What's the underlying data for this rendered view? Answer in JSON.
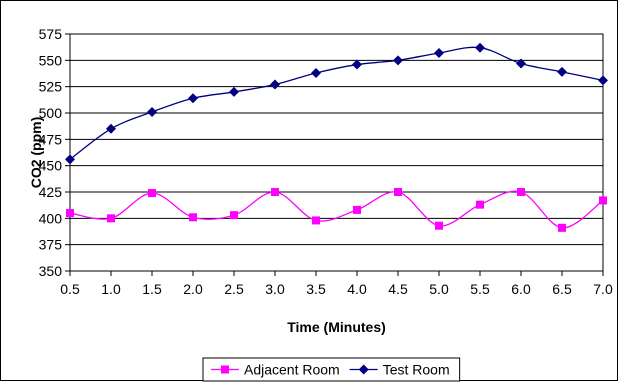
{
  "chart_data": {
    "type": "line",
    "title": "",
    "xlabel": "Time (Minutes)",
    "ylabel": "CO2 (ppm)",
    "x": [
      0.5,
      1.0,
      1.5,
      2.0,
      2.5,
      3.0,
      3.5,
      4.0,
      4.5,
      5.0,
      5.5,
      6.0,
      6.5,
      7.0
    ],
    "x_tick_labels": [
      "0.5",
      "1.0",
      "1.5",
      "2.0",
      "2.5",
      "3.0",
      "3.5",
      "4.0",
      "4.5",
      "5.0",
      "5.5",
      "6.0",
      "6.5",
      "7.0"
    ],
    "ylim": [
      350,
      575
    ],
    "y_ticks": [
      350,
      375,
      400,
      425,
      450,
      475,
      500,
      525,
      550,
      575
    ],
    "grid": "horizontal",
    "legend_position": "bottom",
    "smooth_lines": true,
    "series": [
      {
        "name": "Adjacent Room",
        "color": "#ff00ff",
        "marker": "square",
        "values": [
          405,
          400,
          424,
          401,
          403,
          425,
          398,
          408,
          425,
          393,
          413,
          425,
          391,
          417
        ]
      },
      {
        "name": "Test Room",
        "color": "#000080",
        "marker": "diamond",
        "values": [
          456,
          485,
          501,
          514,
          520,
          527,
          538,
          546,
          550,
          557,
          562,
          547,
          539,
          531
        ]
      }
    ]
  }
}
